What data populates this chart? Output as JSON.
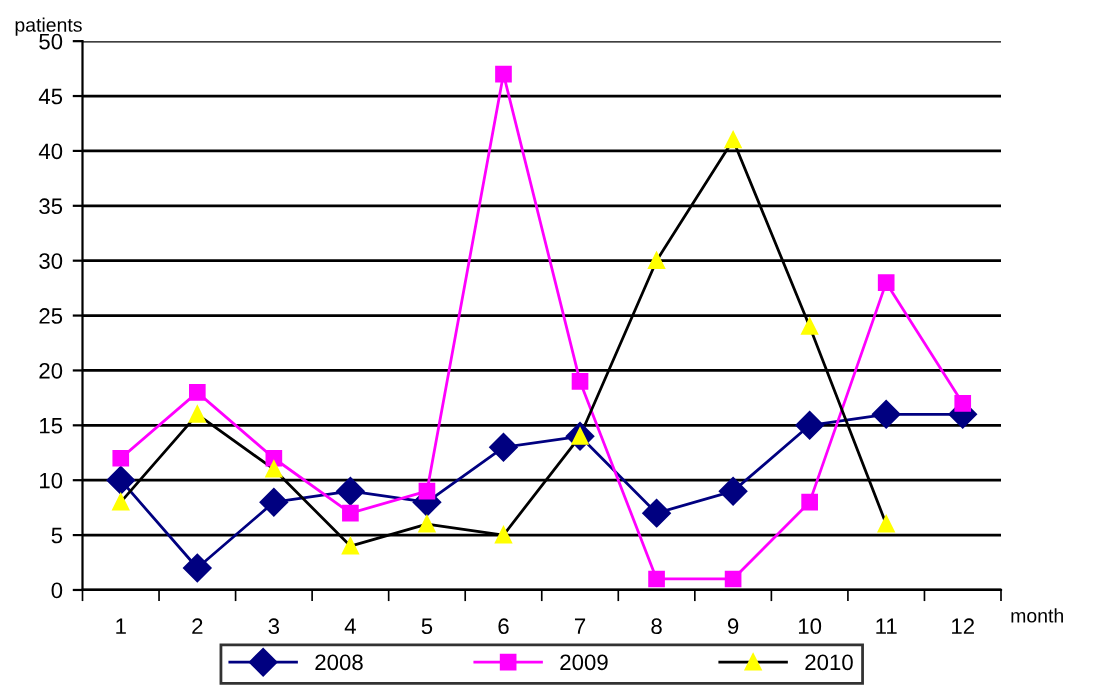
{
  "chart_data": {
    "type": "line",
    "xlabel": "month",
    "ylabel": "patients",
    "categories": [
      "1",
      "2",
      "3",
      "4",
      "5",
      "6",
      "7",
      "8",
      "9",
      "10",
      "11",
      "12"
    ],
    "series": [
      {
        "name": "2008",
        "color": "#000080",
        "marker": "diamond",
        "values": [
          10,
          2,
          8,
          9,
          8,
          13,
          14,
          7,
          9,
          15,
          16,
          16
        ]
      },
      {
        "name": "2009",
        "color": "#ff00ff",
        "marker": "square",
        "values": [
          12,
          18,
          12,
          7,
          9,
          47,
          19,
          1,
          1,
          8,
          28,
          17
        ]
      },
      {
        "name": "2010",
        "color": "#000000",
        "colors": [
          "#ffff00",
          "#ffff00",
          "#ffff00",
          "#ffff00",
          "#ffff00",
          "#ffff00",
          "#ffff00",
          "#ffff00",
          "#ffff00",
          "#ffff00",
          "#ffff00",
          "#ffff00"
        ],
        "marker": "triangle",
        "values": [
          8,
          16,
          11,
          4,
          6,
          5,
          14,
          30,
          41,
          24,
          6,
          null
        ]
      }
    ],
    "ylim": [
      0,
      50
    ],
    "yticks": [
      0,
      5,
      10,
      15,
      20,
      25,
      30,
      35,
      40,
      45,
      50
    ],
    "grid": "y",
    "legend": "bottom",
    "line_style": "solid"
  }
}
